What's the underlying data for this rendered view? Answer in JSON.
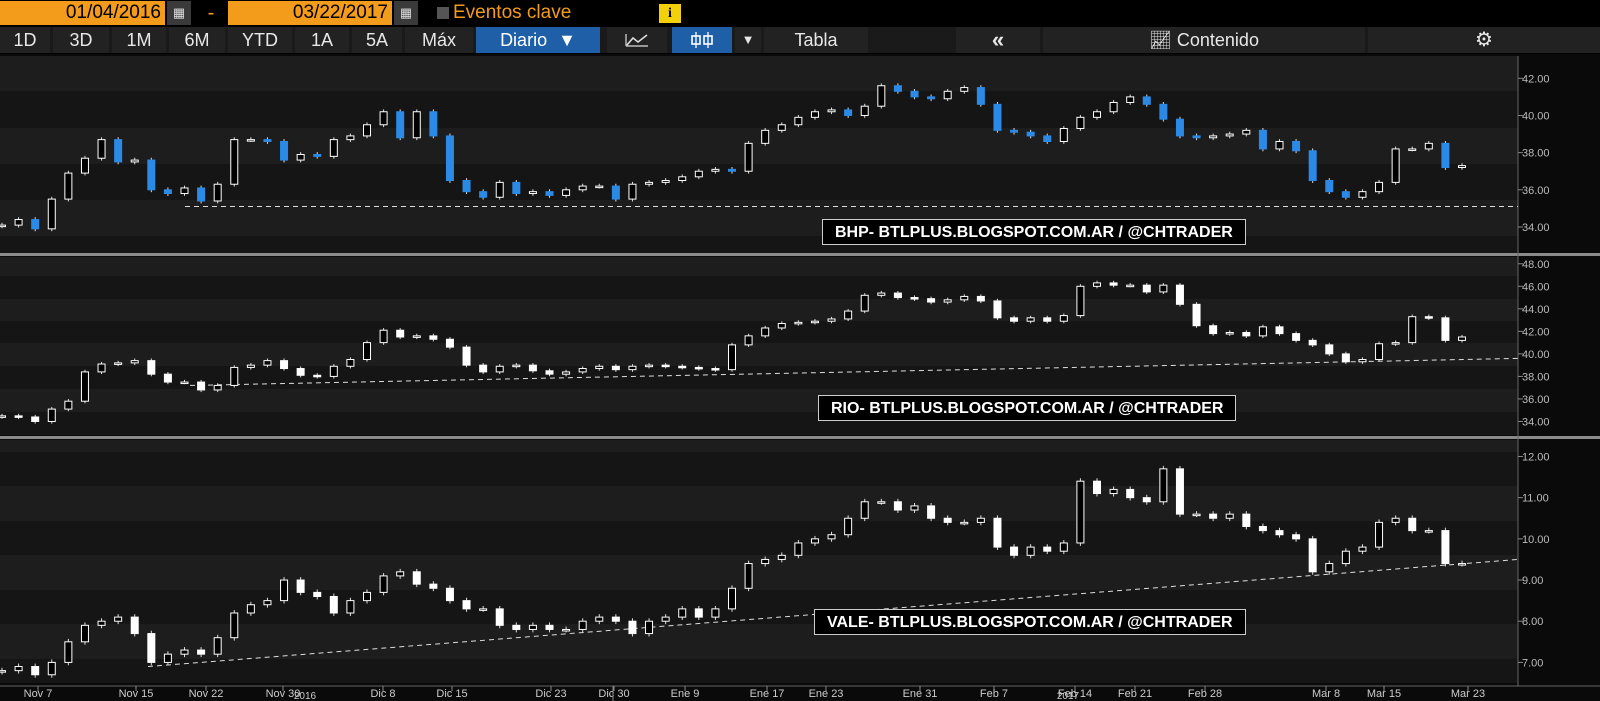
{
  "toolbar": {
    "date_start": "01/04/2016",
    "date_sep": "-",
    "date_end": "03/22/2017",
    "events_label": "Eventos clave",
    "info_label": "i"
  },
  "tabs": {
    "ranges": [
      "1D",
      "3D",
      "1M",
      "6M",
      "YTD",
      "1A",
      "5A",
      "Máx"
    ],
    "interval": "Diario",
    "table_label": "Tabla",
    "back_label": "«",
    "content_label": "Contenido",
    "settings_icon": "gear-icon",
    "line_icon": "line-chart-icon",
    "candle_icon": "candlestick-icon"
  },
  "colors": {
    "up": "#ffffff",
    "down_bhp": "#2b8ae6",
    "down_other": "#ffffff",
    "accent": "#f39b1a",
    "selected_tab": "#1f5fa8"
  },
  "chart_data": [
    {
      "type": "candlestick",
      "watermark": "BHP- BTLPLUS.BLOGSPOT.COM.AR / @CHTRADER",
      "yticks": [
        "42.00",
        "40.00",
        "38.00",
        "36.00",
        "34.00"
      ],
      "ylim": [
        32.6,
        43.2
      ],
      "support_line": {
        "type": "horizontal",
        "y": 35.1
      },
      "closes": [
        34.1,
        34.4,
        33.9,
        35.5,
        36.9,
        37.7,
        38.7,
        37.5,
        37.6,
        36.0,
        35.8,
        36.1,
        35.4,
        36.3,
        38.7,
        38.7,
        38.6,
        37.6,
        37.9,
        37.8,
        38.7,
        38.9,
        39.5,
        40.2,
        38.8,
        40.2,
        38.9,
        36.5,
        35.9,
        35.6,
        36.4,
        35.8,
        35.9,
        35.7,
        36.0,
        36.2,
        36.2,
        35.5,
        36.3,
        36.4,
        36.5,
        36.7,
        37.0,
        37.1,
        37.0,
        38.5,
        39.2,
        39.5,
        39.9,
        40.2,
        40.3,
        40.0,
        40.5,
        41.6,
        41.3,
        41.0,
        40.9,
        41.3,
        41.5,
        40.6,
        39.2,
        39.1,
        38.9,
        38.6,
        39.3,
        39.9,
        40.2,
        40.7,
        41.0,
        40.6,
        39.8,
        38.9,
        38.8,
        38.9,
        39.0,
        39.2,
        38.2,
        38.6,
        38.1,
        36.5,
        35.9,
        35.6,
        35.9,
        36.4,
        38.2,
        38.2,
        38.5,
        37.2,
        37.3
      ],
      "x_labels": [
        "Nov 7",
        "Nov 15",
        "Nov 22",
        "Nov 30",
        "Dic 8",
        "Dic 15",
        "Dic 23",
        "Dic 30",
        "Ene 9",
        "Ene 17",
        "Ene 23",
        "Ene 31",
        "Feb 7",
        "Feb 14",
        "Feb 21",
        "Feb 28",
        "Mar 8",
        "Mar 15",
        "Mar 23"
      ],
      "year_labels": [
        "2016",
        "2017"
      ]
    },
    {
      "type": "candlestick",
      "watermark": "RIO- BTLPLUS.BLOGSPOT.COM.AR / @CHTRADER",
      "yticks": [
        "48.00",
        "46.00",
        "44.00",
        "42.00",
        "40.00",
        "38.00",
        "36.00",
        "34.00"
      ],
      "ylim": [
        32.8,
        48.6
      ],
      "support_line": {
        "type": "trend",
        "y_start": 37.2,
        "y_end": 39.6
      },
      "closes": [
        34.5,
        34.4,
        34.0,
        35.1,
        35.8,
        38.4,
        39.1,
        39.2,
        39.4,
        38.2,
        37.5,
        37.5,
        36.8,
        37.2,
        38.8,
        39.0,
        39.4,
        38.7,
        38.1,
        38.0,
        38.9,
        39.5,
        41.0,
        42.1,
        41.5,
        41.6,
        41.3,
        40.6,
        39.0,
        38.4,
        38.9,
        39.0,
        38.5,
        38.2,
        38.4,
        38.7,
        38.9,
        38.6,
        38.9,
        39.0,
        38.9,
        38.8,
        38.7,
        38.6,
        40.8,
        41.6,
        42.3,
        42.7,
        42.8,
        42.9,
        43.1,
        43.8,
        45.2,
        45.4,
        45.0,
        44.9,
        44.6,
        44.8,
        45.1,
        44.7,
        43.2,
        42.9,
        43.2,
        42.9,
        43.4,
        46.0,
        46.3,
        46.1,
        46.1,
        45.5,
        46.1,
        44.4,
        42.5,
        41.8,
        41.9,
        41.6,
        42.4,
        41.8,
        41.2,
        40.8,
        40.0,
        39.3,
        39.5,
        40.9,
        41.0,
        43.3,
        43.2,
        41.2,
        41.5
      ],
      "x_labels": [],
      "year_labels": []
    },
    {
      "type": "candlestick",
      "watermark": "VALE- BTLPLUS.BLOGSPOT.COM.AR / @CHTRADER",
      "yticks": [
        "12.00",
        "11.00",
        "10.00",
        "9.00",
        "8.00",
        "7.00"
      ],
      "ylim": [
        6.5,
        12.4
      ],
      "support_line": {
        "type": "trend",
        "y_start": 6.9,
        "y_end": 9.5
      },
      "closes": [
        6.8,
        6.9,
        6.7,
        7.0,
        7.5,
        7.9,
        8.0,
        8.1,
        7.7,
        7.0,
        7.2,
        7.3,
        7.2,
        7.6,
        8.2,
        8.4,
        8.5,
        9.0,
        8.7,
        8.6,
        8.2,
        8.5,
        8.7,
        9.1,
        9.2,
        8.9,
        8.8,
        8.5,
        8.3,
        8.3,
        7.9,
        7.8,
        7.9,
        7.8,
        7.8,
        8.0,
        8.1,
        8.0,
        7.7,
        8.0,
        8.1,
        8.3,
        8.1,
        8.3,
        8.8,
        9.4,
        9.5,
        9.6,
        9.9,
        10.0,
        10.1,
        10.5,
        10.9,
        10.9,
        10.7,
        10.8,
        10.5,
        10.4,
        10.4,
        10.5,
        9.8,
        9.6,
        9.8,
        9.7,
        9.9,
        11.4,
        11.1,
        11.2,
        11.0,
        10.9,
        11.7,
        10.6,
        10.6,
        10.5,
        10.6,
        10.3,
        10.2,
        10.1,
        10.0,
        9.2,
        9.4,
        9.7,
        9.8,
        10.4,
        10.5,
        10.2,
        10.2,
        9.4,
        9.4
      ],
      "x_labels": [],
      "year_labels": []
    }
  ]
}
